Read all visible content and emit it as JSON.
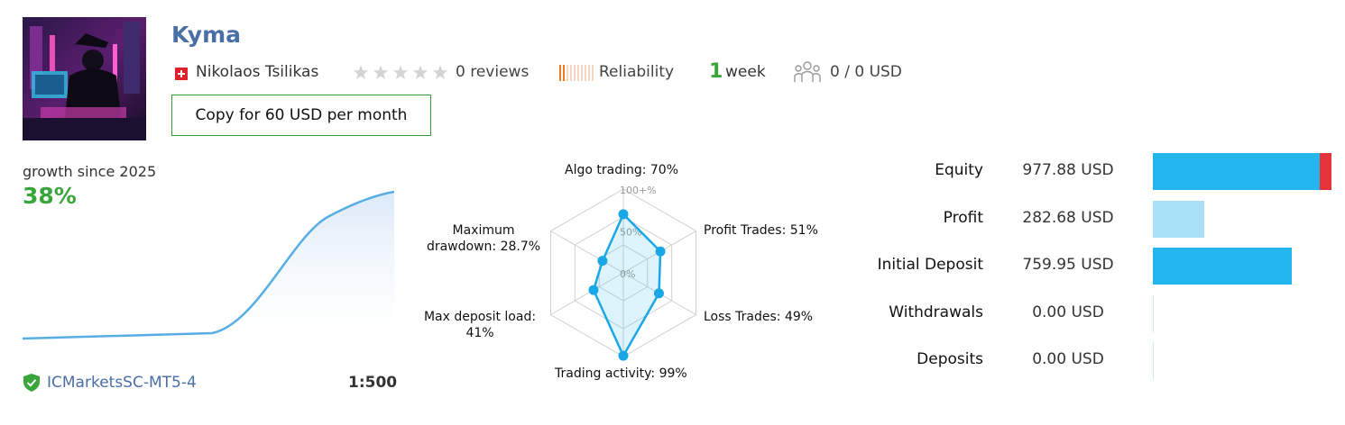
{
  "header": {
    "title": "Kyma",
    "author": "Nikolaos Tsilikas",
    "reviews": "0 reviews",
    "rating_stars": 0,
    "reliability_label": "Reliability",
    "reliability_level": 2,
    "weeks_number": "1",
    "weeks_label": "week",
    "subscribers": "0 / 0 USD",
    "copy_button": "Copy for 60 USD per month"
  },
  "growth": {
    "label": "growth since 2025",
    "value": "38%",
    "broker": "ICMarketsSC-MT5-4",
    "leverage": "1:500"
  },
  "radar": {
    "scale_labels": [
      "100+%",
      "50%",
      "0%"
    ],
    "axes": [
      {
        "label": "Algo trading: 70%",
        "value": 70
      },
      {
        "label": "Profit Trades: 51%",
        "value": 51
      },
      {
        "label": "Loss Trades: 49%",
        "value": 49
      },
      {
        "label": "Trading activity: 99%",
        "value": 99
      },
      {
        "label_lines": [
          "Max deposit load:",
          "41%"
        ],
        "value": 41
      },
      {
        "label_lines": [
          "Maximum",
          "drawdown: 28.7%"
        ],
        "value": 28.7
      }
    ]
  },
  "stats": [
    {
      "label": "Equity",
      "value": "977.88 USD",
      "amount": 977.88,
      "drawdown": 0.08
    },
    {
      "label": "Profit",
      "value": "282.68 USD",
      "amount": 282.68
    },
    {
      "label": "Initial Deposit",
      "value": "759.95 USD",
      "amount": 759.95
    },
    {
      "label": "Withdrawals",
      "value": "0.00 USD",
      "amount": 0
    },
    {
      "label": "Deposits",
      "value": "0.00 USD",
      "amount": 0
    }
  ],
  "colors": {
    "accent_blue": "#4a6fa5",
    "green": "#3aa53a",
    "bar_blue": "#23b5ee",
    "bar_light": "#a8e0f7",
    "bar_red": "#e5333a",
    "reliability_orange": "#f07822"
  },
  "icons": {
    "flag": "swiss-flag-icon",
    "star": "star-icon",
    "subscribers": "subscribers-icon",
    "shield": "verified-shield-icon"
  }
}
